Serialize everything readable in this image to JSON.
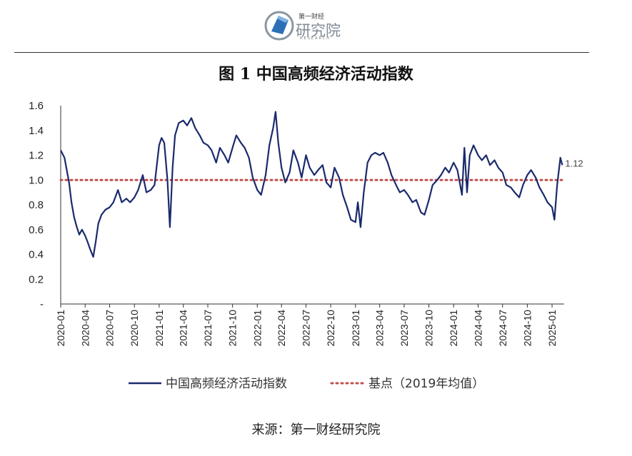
{
  "logo": {
    "top_text": "第一财经",
    "main_text": "研究院",
    "sub_text": "RESEARCH"
  },
  "title": "图 1  中国高频经济活动指数",
  "source": "来源：第一财经研究院",
  "colors": {
    "series": "#1a2a6c",
    "baseline": "#c0504d",
    "axis": "#333333"
  },
  "chart_data": {
    "type": "line",
    "title": "图 1  中国高频经济活动指数",
    "xlabel": "",
    "ylabel": "",
    "ylim": [
      0,
      1.6
    ],
    "yticks": [
      "-",
      "0.2",
      "0.4",
      "0.6",
      "0.8",
      "1.0",
      "1.2",
      "1.4",
      "1.6"
    ],
    "xticks": [
      "2020-01",
      "2020-04",
      "2020-07",
      "2020-10",
      "2021-01",
      "2021-04",
      "2021-07",
      "2021-10",
      "2022-01",
      "2022-04",
      "2022-07",
      "2022-10",
      "2023-01",
      "2023-04",
      "2023-07",
      "2023-10",
      "2024-01",
      "2024-04",
      "2024-07",
      "2024-10",
      "2025-01"
    ],
    "grid": false,
    "legend_position": "bottom",
    "series": [
      {
        "name": "中国高频经济活动指数",
        "style": "solid",
        "points": [
          [
            "2020-01",
            1.24
          ],
          [
            "2020-01-15",
            1.18
          ],
          [
            "2020-02-01",
            0.98
          ],
          [
            "2020-02-10",
            0.82
          ],
          [
            "2020-02-20",
            0.7
          ],
          [
            "2020-03-01",
            0.62
          ],
          [
            "2020-03-10",
            0.56
          ],
          [
            "2020-03-20",
            0.6
          ],
          [
            "2020-04-01",
            0.55
          ],
          [
            "2020-04-10",
            0.5
          ],
          [
            "2020-04-20",
            0.44
          ],
          [
            "2020-05-01",
            0.38
          ],
          [
            "2020-05-10",
            0.5
          ],
          [
            "2020-05-20",
            0.65
          ],
          [
            "2020-06-01",
            0.72
          ],
          [
            "2020-06-15",
            0.76
          ],
          [
            "2020-07-01",
            0.78
          ],
          [
            "2020-07-15",
            0.82
          ],
          [
            "2020-08-01",
            0.92
          ],
          [
            "2020-08-15",
            0.82
          ],
          [
            "2020-09-01",
            0.85
          ],
          [
            "2020-09-15",
            0.82
          ],
          [
            "2020-10-01",
            0.86
          ],
          [
            "2020-10-15",
            0.92
          ],
          [
            "2020-11-01",
            1.04
          ],
          [
            "2020-11-15",
            0.9
          ],
          [
            "2020-12-01",
            0.92
          ],
          [
            "2020-12-15",
            0.96
          ],
          [
            "2021-01-01",
            1.28
          ],
          [
            "2021-01-10",
            1.34
          ],
          [
            "2021-01-20",
            1.3
          ],
          [
            "2021-02-01",
            1.0
          ],
          [
            "2021-02-10",
            0.62
          ],
          [
            "2021-02-20",
            1.1
          ],
          [
            "2021-03-01",
            1.36
          ],
          [
            "2021-03-15",
            1.46
          ],
          [
            "2021-04-01",
            1.48
          ],
          [
            "2021-04-15",
            1.44
          ],
          [
            "2021-05-01",
            1.5
          ],
          [
            "2021-05-15",
            1.42
          ],
          [
            "2021-06-01",
            1.36
          ],
          [
            "2021-06-15",
            1.3
          ],
          [
            "2021-07-01",
            1.28
          ],
          [
            "2021-07-15",
            1.24
          ],
          [
            "2021-08-01",
            1.14
          ],
          [
            "2021-08-15",
            1.26
          ],
          [
            "2021-09-01",
            1.2
          ],
          [
            "2021-09-15",
            1.14
          ],
          [
            "2021-10-01",
            1.26
          ],
          [
            "2021-10-15",
            1.36
          ],
          [
            "2021-11-01",
            1.3
          ],
          [
            "2021-11-15",
            1.26
          ],
          [
            "2021-12-01",
            1.18
          ],
          [
            "2021-12-15",
            1.02
          ],
          [
            "2022-01-01",
            0.92
          ],
          [
            "2022-01-15",
            0.88
          ],
          [
            "2022-02-01",
            1.04
          ],
          [
            "2022-02-15",
            1.28
          ],
          [
            "2022-03-01",
            1.42
          ],
          [
            "2022-03-10",
            1.55
          ],
          [
            "2022-03-20",
            1.3
          ],
          [
            "2022-04-01",
            1.1
          ],
          [
            "2022-04-15",
            0.98
          ],
          [
            "2022-05-01",
            1.06
          ],
          [
            "2022-05-15",
            1.24
          ],
          [
            "2022-06-01",
            1.14
          ],
          [
            "2022-06-15",
            1.02
          ],
          [
            "2022-07-01",
            1.2
          ],
          [
            "2022-07-15",
            1.1
          ],
          [
            "2022-08-01",
            1.04
          ],
          [
            "2022-08-15",
            1.08
          ],
          [
            "2022-09-01",
            1.12
          ],
          [
            "2022-09-15",
            0.98
          ],
          [
            "2022-10-01",
            0.94
          ],
          [
            "2022-10-15",
            1.1
          ],
          [
            "2022-11-01",
            1.02
          ],
          [
            "2022-11-15",
            0.88
          ],
          [
            "2022-12-01",
            0.78
          ],
          [
            "2022-12-15",
            0.68
          ],
          [
            "2023-01-01",
            0.66
          ],
          [
            "2023-01-10",
            0.82
          ],
          [
            "2023-01-20",
            0.62
          ],
          [
            "2023-02-01",
            0.9
          ],
          [
            "2023-02-15",
            1.14
          ],
          [
            "2023-03-01",
            1.2
          ],
          [
            "2023-03-15",
            1.22
          ],
          [
            "2023-04-01",
            1.2
          ],
          [
            "2023-04-15",
            1.22
          ],
          [
            "2023-05-01",
            1.14
          ],
          [
            "2023-05-15",
            1.04
          ],
          [
            "2023-06-01",
            0.96
          ],
          [
            "2023-06-15",
            0.9
          ],
          [
            "2023-07-01",
            0.92
          ],
          [
            "2023-07-15",
            0.88
          ],
          [
            "2023-08-01",
            0.82
          ],
          [
            "2023-08-15",
            0.84
          ],
          [
            "2023-09-01",
            0.74
          ],
          [
            "2023-09-15",
            0.72
          ],
          [
            "2023-10-01",
            0.84
          ],
          [
            "2023-10-15",
            0.96
          ],
          [
            "2023-11-01",
            1.0
          ],
          [
            "2023-11-15",
            1.04
          ],
          [
            "2023-12-01",
            1.1
          ],
          [
            "2023-12-15",
            1.06
          ],
          [
            "2024-01-01",
            1.14
          ],
          [
            "2024-01-15",
            1.08
          ],
          [
            "2024-02-01",
            0.88
          ],
          [
            "2024-02-10",
            1.26
          ],
          [
            "2024-02-20",
            0.9
          ],
          [
            "2024-03-01",
            1.2
          ],
          [
            "2024-03-15",
            1.28
          ],
          [
            "2024-04-01",
            1.2
          ],
          [
            "2024-04-15",
            1.16
          ],
          [
            "2024-05-01",
            1.2
          ],
          [
            "2024-05-15",
            1.12
          ],
          [
            "2024-06-01",
            1.16
          ],
          [
            "2024-06-15",
            1.1
          ],
          [
            "2024-07-01",
            1.06
          ],
          [
            "2024-07-15",
            0.96
          ],
          [
            "2024-08-01",
            0.94
          ],
          [
            "2024-08-15",
            0.9
          ],
          [
            "2024-09-01",
            0.86
          ],
          [
            "2024-09-15",
            0.96
          ],
          [
            "2024-10-01",
            1.04
          ],
          [
            "2024-10-15",
            1.08
          ],
          [
            "2024-11-01",
            1.02
          ],
          [
            "2024-11-15",
            0.94
          ],
          [
            "2024-12-01",
            0.88
          ],
          [
            "2024-12-15",
            0.82
          ],
          [
            "2025-01-01",
            0.78
          ],
          [
            "2025-01-10",
            0.68
          ],
          [
            "2025-01-20",
            0.96
          ],
          [
            "2025-02-01",
            1.18
          ],
          [
            "2025-02-08",
            1.12
          ]
        ]
      },
      {
        "name": "基点（2019年均值）",
        "style": "dotted",
        "value": 1.0
      }
    ],
    "annotations": [
      {
        "text": "1.12",
        "x": "2025-02-08",
        "y": 1.12
      }
    ]
  }
}
